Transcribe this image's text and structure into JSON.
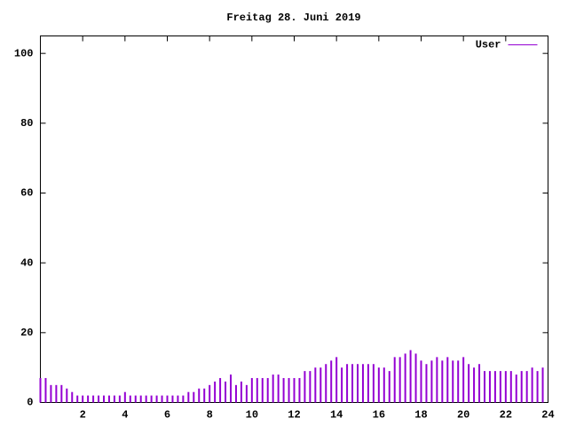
{
  "chart_data": {
    "type": "impulse",
    "title": "Freitag 28. Juni 2019",
    "x": [
      0,
      0.25,
      0.5,
      0.75,
      1,
      1.25,
      1.5,
      1.75,
      2,
      2.25,
      2.5,
      2.75,
      3,
      3.25,
      3.5,
      3.75,
      4,
      4.25,
      4.5,
      4.75,
      5,
      5.25,
      5.5,
      5.75,
      6,
      6.25,
      6.5,
      6.75,
      7,
      7.25,
      7.5,
      7.75,
      8,
      8.25,
      8.5,
      8.75,
      9,
      9.25,
      9.5,
      9.75,
      10,
      10.25,
      10.5,
      10.75,
      11,
      11.25,
      11.5,
      11.75,
      12,
      12.25,
      12.5,
      12.75,
      13,
      13.25,
      13.5,
      13.75,
      14,
      14.25,
      14.5,
      14.75,
      15,
      15.25,
      15.5,
      15.75,
      16,
      16.25,
      16.5,
      16.75,
      17,
      17.25,
      17.5,
      17.75,
      18,
      18.25,
      18.5,
      18.75,
      19,
      19.25,
      19.5,
      19.75,
      20,
      20.25,
      20.5,
      20.75,
      21,
      21.25,
      21.5,
      21.75,
      22,
      22.25,
      22.5,
      22.75,
      23,
      23.25,
      23.5,
      23.75
    ],
    "series": [
      {
        "name": "User",
        "color": "#9400d3",
        "values": [
          7,
          7,
          5,
          5,
          5,
          4,
          3,
          2,
          2,
          2,
          2,
          2,
          2,
          2,
          2,
          2,
          3,
          2,
          2,
          2,
          2,
          2,
          2,
          2,
          2,
          2,
          2,
          2,
          3,
          3,
          4,
          4,
          5,
          6,
          7,
          6,
          8,
          5,
          6,
          5,
          7,
          7,
          7,
          7,
          8,
          8,
          7,
          7,
          7,
          7,
          9,
          9,
          10,
          10,
          11,
          12,
          13,
          10,
          11,
          11,
          11,
          11,
          11,
          11,
          10,
          10,
          9,
          13,
          13,
          14,
          15,
          14,
          12,
          11,
          12,
          13,
          12,
          13,
          12,
          12,
          13,
          11,
          10,
          11,
          9,
          9,
          9,
          9,
          9,
          9,
          8,
          9,
          9,
          10,
          9,
          10
        ]
      }
    ],
    "xlim": [
      0,
      24
    ],
    "xticks": [
      2,
      4,
      6,
      8,
      10,
      12,
      14,
      16,
      18,
      20,
      22,
      24
    ],
    "ylim": [
      0,
      105
    ],
    "yticks": [
      0,
      20,
      40,
      60,
      80,
      100
    ],
    "legend": "top right"
  }
}
